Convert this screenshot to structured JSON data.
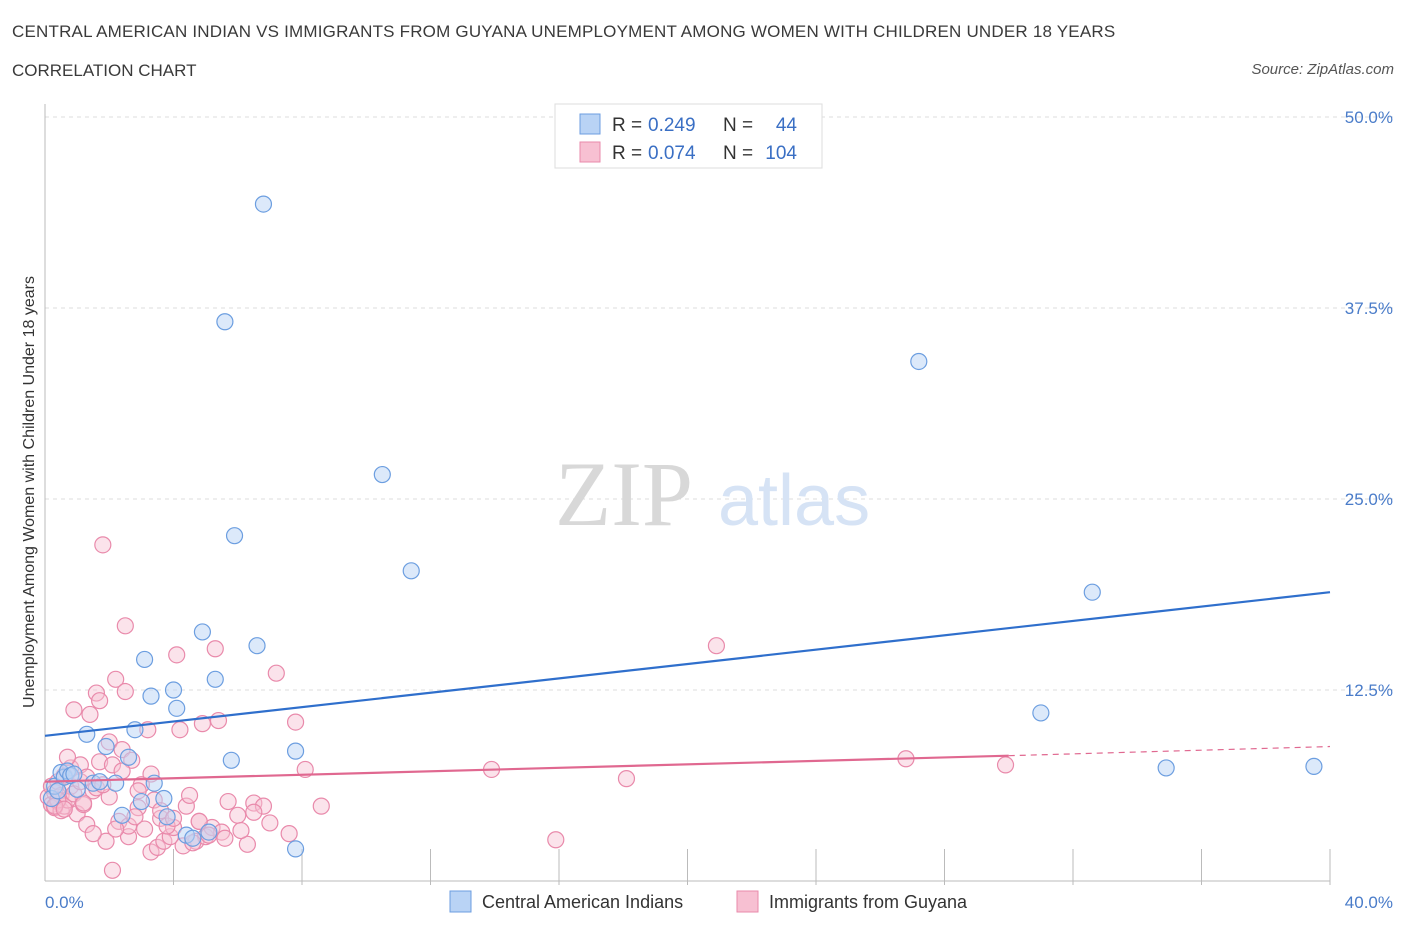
{
  "title": "CENTRAL AMERICAN INDIAN VS IMMIGRANTS FROM GUYANA UNEMPLOYMENT AMONG WOMEN WITH CHILDREN UNDER 18 YEARS",
  "subtitle": "CORRELATION CHART",
  "source": "Source: ZipAtlas.com",
  "watermark": {
    "zip": "ZIP",
    "atlas": "atlas"
  },
  "colors": {
    "blue_fill": "#b9d3f5",
    "blue_stroke": "#6c9ee0",
    "blue_line": "#2f6fcc",
    "pink_fill": "#f7c0d2",
    "pink_stroke": "#e98aab",
    "pink_line": "#e06890",
    "tick_text": "#4a7cc9",
    "grid": "#dddddd"
  },
  "legend": {
    "rows": [
      {
        "r_label": "R =",
        "r_value": "0.249",
        "n_label": "N =",
        "n_value": "44"
      },
      {
        "r_label": "R =",
        "r_value": "0.074",
        "n_label": "N =",
        "n_value": "104"
      }
    ]
  },
  "chart_data": {
    "type": "scatter",
    "title": "CENTRAL AMERICAN INDIAN VS IMMIGRANTS FROM GUYANA UNEMPLOYMENT AMONG WOMEN WITH CHILDREN UNDER 18 YEARS",
    "xlabel": "",
    "ylabel": "Unemployment Among Women with Children Under 18 years",
    "xlim": [
      0,
      40
    ],
    "ylim": [
      0,
      50
    ],
    "x_tick_labels": [
      "0.0%",
      "40.0%"
    ],
    "y_ticks": [
      12.5,
      25.0,
      37.5,
      50.0
    ],
    "y_tick_labels": [
      "12.5%",
      "25.0%",
      "37.5%",
      "50.0%"
    ],
    "grid": true,
    "legend_position": "top-center",
    "series": [
      {
        "name": "Central American Indians",
        "trend": {
          "x0": 0,
          "y0": 9.5,
          "x1": 40,
          "y1": 18.9,
          "dashed_from": null
        },
        "points": [
          [
            0.2,
            5.4
          ],
          [
            0.3,
            6.2
          ],
          [
            0.4,
            5.9
          ],
          [
            0.5,
            7.1
          ],
          [
            0.6,
            6.8
          ],
          [
            0.7,
            7.2
          ],
          [
            0.8,
            6.9
          ],
          [
            0.9,
            7.0
          ],
          [
            1.3,
            9.6
          ],
          [
            1.5,
            6.4
          ],
          [
            1.7,
            6.5
          ],
          [
            1.9,
            8.8
          ],
          [
            2.2,
            6.4
          ],
          [
            2.4,
            4.3
          ],
          [
            2.6,
            8.1
          ],
          [
            2.8,
            9.9
          ],
          [
            3.0,
            5.2
          ],
          [
            3.1,
            14.5
          ],
          [
            3.3,
            12.1
          ],
          [
            3.4,
            6.4
          ],
          [
            3.7,
            5.4
          ],
          [
            3.8,
            4.2
          ],
          [
            4.0,
            12.5
          ],
          [
            4.1,
            11.3
          ],
          [
            4.4,
            3.0
          ],
          [
            4.6,
            2.8
          ],
          [
            4.9,
            16.3
          ],
          [
            5.1,
            3.2
          ],
          [
            5.3,
            13.2
          ],
          [
            5.6,
            36.6
          ],
          [
            5.8,
            7.9
          ],
          [
            5.9,
            22.6
          ],
          [
            6.8,
            44.3
          ],
          [
            6.6,
            15.4
          ],
          [
            7.8,
            8.5
          ],
          [
            7.8,
            2.1
          ],
          [
            10.5,
            26.6
          ],
          [
            11.4,
            20.3
          ],
          [
            27.2,
            34.0
          ],
          [
            31.0,
            11.0
          ],
          [
            32.6,
            18.9
          ],
          [
            34.9,
            7.4
          ],
          [
            39.5,
            7.5
          ],
          [
            1.0,
            6.0
          ]
        ]
      },
      {
        "name": "Immigrants from Guyana",
        "trend": {
          "x0": 0,
          "y0": 6.5,
          "x1": 30,
          "y1": 8.2,
          "x2": 40,
          "y2": 8.8,
          "dashed_from": 30
        },
        "points": [
          [
            0.1,
            5.5
          ],
          [
            0.2,
            5.0
          ],
          [
            0.2,
            6.2
          ],
          [
            0.3,
            4.8
          ],
          [
            0.3,
            5.8
          ],
          [
            0.4,
            5.2
          ],
          [
            0.4,
            6.5
          ],
          [
            0.5,
            4.6
          ],
          [
            0.5,
            5.6
          ],
          [
            0.6,
            6.9
          ],
          [
            0.6,
            4.9
          ],
          [
            0.7,
            5.3
          ],
          [
            0.8,
            6.2
          ],
          [
            0.8,
            7.4
          ],
          [
            0.9,
            5.7
          ],
          [
            0.9,
            11.2
          ],
          [
            1.0,
            4.4
          ],
          [
            1.1,
            6.5
          ],
          [
            1.1,
            7.6
          ],
          [
            1.2,
            5.0
          ],
          [
            1.3,
            6.8
          ],
          [
            1.4,
            10.9
          ],
          [
            1.5,
            5.9
          ],
          [
            1.6,
            12.3
          ],
          [
            1.7,
            7.8
          ],
          [
            1.7,
            11.8
          ],
          [
            1.8,
            22.0
          ],
          [
            1.9,
            2.6
          ],
          [
            2.0,
            5.5
          ],
          [
            2.0,
            9.1
          ],
          [
            2.1,
            7.6
          ],
          [
            2.1,
            0.7
          ],
          [
            2.2,
            13.2
          ],
          [
            2.3,
            3.9
          ],
          [
            2.4,
            8.6
          ],
          [
            2.5,
            12.4
          ],
          [
            2.5,
            16.7
          ],
          [
            2.6,
            2.9
          ],
          [
            2.6,
            3.6
          ],
          [
            2.7,
            7.9
          ],
          [
            2.9,
            4.8
          ],
          [
            3.0,
            6.3
          ],
          [
            3.1,
            3.4
          ],
          [
            3.2,
            9.9
          ],
          [
            3.3,
            1.9
          ],
          [
            3.4,
            5.3
          ],
          [
            3.5,
            2.2
          ],
          [
            3.6,
            4.1
          ],
          [
            3.7,
            2.6
          ],
          [
            3.9,
            2.9
          ],
          [
            4.0,
            3.5
          ],
          [
            4.1,
            14.8
          ],
          [
            4.2,
            9.9
          ],
          [
            4.3,
            2.3
          ],
          [
            4.4,
            4.9
          ],
          [
            4.5,
            5.6
          ],
          [
            4.7,
            2.6
          ],
          [
            4.8,
            3.9
          ],
          [
            4.9,
            10.3
          ],
          [
            5.0,
            2.9
          ],
          [
            5.2,
            3.5
          ],
          [
            5.3,
            15.2
          ],
          [
            5.4,
            10.5
          ],
          [
            5.5,
            3.2
          ],
          [
            5.7,
            5.2
          ],
          [
            6.0,
            4.3
          ],
          [
            6.3,
            2.4
          ],
          [
            6.5,
            5.1
          ],
          [
            6.8,
            4.9
          ],
          [
            7.0,
            3.8
          ],
          [
            7.2,
            13.6
          ],
          [
            7.6,
            3.1
          ],
          [
            7.8,
            10.4
          ],
          [
            8.1,
            7.3
          ],
          [
            8.6,
            4.9
          ],
          [
            13.9,
            7.3
          ],
          [
            15.9,
            2.7
          ],
          [
            18.1,
            6.7
          ],
          [
            20.9,
            15.4
          ],
          [
            26.8,
            8.0
          ],
          [
            29.9,
            7.6
          ],
          [
            1.3,
            3.7
          ],
          [
            2.8,
            4.2
          ],
          [
            3.6,
            4.6
          ],
          [
            4.8,
            3.9
          ],
          [
            5.6,
            2.8
          ],
          [
            6.1,
            3.3
          ],
          [
            0.7,
            8.1
          ],
          [
            1.6,
            6.1
          ],
          [
            2.4,
            7.2
          ],
          [
            0.4,
            5.3
          ],
          [
            0.3,
            4.9
          ],
          [
            0.6,
            4.7
          ],
          [
            1.2,
            5.1
          ],
          [
            1.8,
            6.3
          ],
          [
            2.9,
            5.9
          ],
          [
            3.3,
            7.0
          ],
          [
            3.8,
            3.6
          ],
          [
            4.6,
            2.5
          ],
          [
            5.1,
            3.0
          ],
          [
            1.5,
            3.1
          ],
          [
            2.2,
            3.4
          ],
          [
            4.0,
            4.1
          ],
          [
            6.5,
            4.5
          ]
        ]
      }
    ],
    "legend_entries": [
      "Central American Indians",
      "Immigrants from Guyana"
    ]
  }
}
